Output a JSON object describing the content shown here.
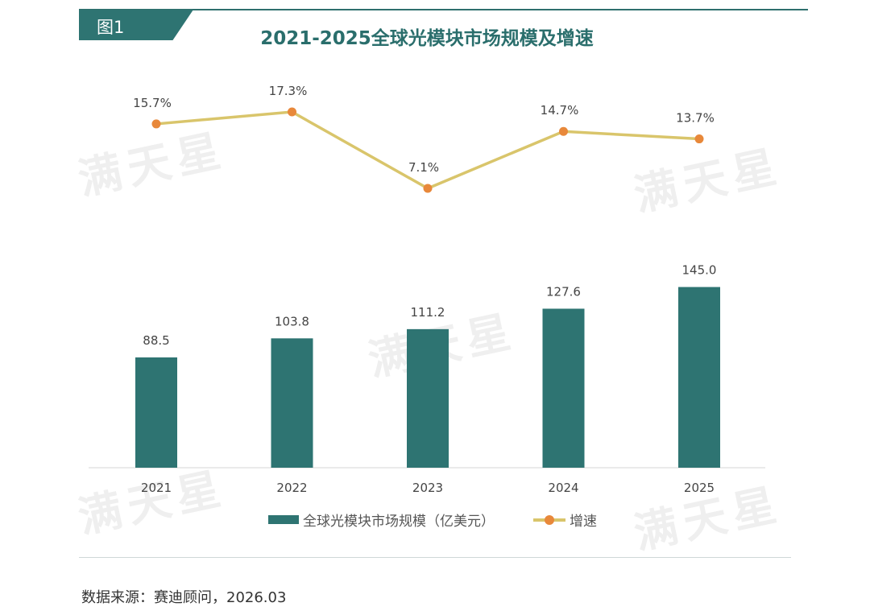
{
  "header": {
    "figure_label": "图1",
    "title": "2021-2025全球光模块市场规模及增速"
  },
  "watermark": "满天星",
  "source": "数据来源：赛迪顾问，2026.03",
  "colors": {
    "bar": "#2e7472",
    "line": "#d9c56b",
    "marker": "#e8883a",
    "title": "#2a6e6c"
  },
  "chart_data": {
    "type": "bar+line",
    "title": "2021-2025全球光模块市场规模及增速",
    "categories": [
      "2021",
      "2022",
      "2023",
      "2024",
      "2025"
    ],
    "series": [
      {
        "name": "全球光模块市场规模（亿美元）",
        "type": "bar",
        "values": [
          88.5,
          103.8,
          111.2,
          127.6,
          145.0
        ],
        "labels": [
          "88.5",
          "103.8",
          "111.2",
          "127.6",
          "145.0"
        ]
      },
      {
        "name": "增速",
        "type": "line",
        "values": [
          15.7,
          17.3,
          7.1,
          14.7,
          13.7
        ],
        "labels": [
          "15.7%",
          "17.3%",
          "7.1%",
          "14.7%",
          "13.7%"
        ]
      }
    ],
    "grid": false,
    "legend": "bottom"
  }
}
